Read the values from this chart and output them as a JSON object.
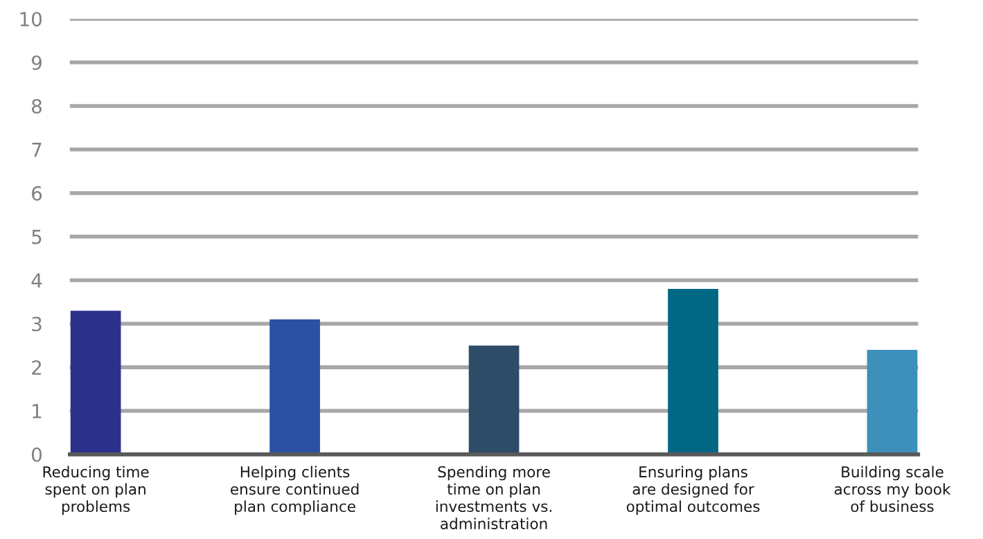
{
  "chart_data": {
    "type": "bar",
    "categories": [
      "Reducing time\nspent on plan\nproblems",
      "Helping clients\nensure continued\nplan compliance",
      "Spending more\ntime on plan\ninvestments vs.\nadministration",
      "Ensuring plans\nare designed for\noptimal outcomes",
      "Building scale\nacross my book\nof business"
    ],
    "values": [
      3.3,
      3.1,
      2.5,
      3.8,
      2.4
    ],
    "colors": [
      "#2b318a",
      "#2a51a3",
      "#2e4b68",
      "#016782",
      "#3c90b9"
    ],
    "ylim": [
      0,
      10
    ],
    "yticks": [
      0,
      1,
      2,
      3,
      4,
      5,
      6,
      7,
      8,
      9,
      10
    ],
    "grid": "y",
    "legend": false
  }
}
